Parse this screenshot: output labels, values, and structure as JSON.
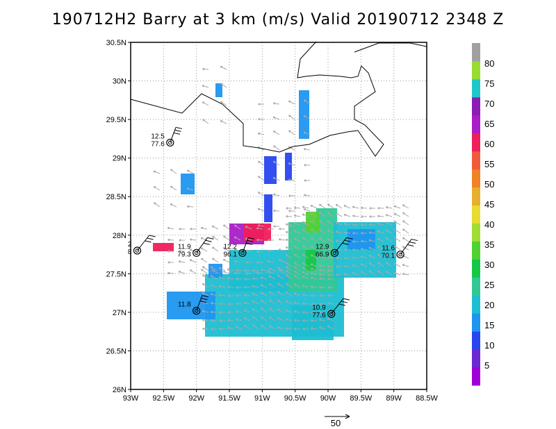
{
  "title": "190712H2 Barry at 3 km (m/s) Valid 20190712 2348 Z",
  "axes": {
    "lon_range": [
      -93,
      -88.5
    ],
    "lat_range": [
      26,
      30.5
    ],
    "x_ticks": [
      "93W",
      "92.5W",
      "92W",
      "91.5W",
      "91W",
      "90.5W",
      "90W",
      "89.5W",
      "89W",
      "88.5W"
    ],
    "y_ticks": [
      "30.5N",
      "30N",
      "29.5N",
      "29N",
      "28.5N",
      "28N",
      "27.5N",
      "27N",
      "26.5N",
      "26N"
    ],
    "grid": "dotted"
  },
  "colorbar": {
    "labels": [
      "5",
      "10",
      "15",
      "20",
      "25",
      "30",
      "35",
      "40",
      "45",
      "50",
      "55",
      "60",
      "65",
      "70",
      "75",
      "80"
    ],
    "colors": [
      "#a000d8",
      "#6e28d2",
      "#2846f0",
      "#1e96f0",
      "#1ebed2",
      "#32c896",
      "#14c846",
      "#50d232",
      "#a0dc32",
      "#e6dc32",
      "#e6af2d",
      "#f08228",
      "#f05a3c",
      "#f01e5a",
      "#aa1ec8",
      "#8c1eb4",
      "#1ec8c8",
      "#96dc32",
      "#a0a0a0"
    ]
  },
  "observations": [
    {
      "lon": -92.4,
      "lat": 29.2,
      "speed": "12.5",
      "dir": "77.6"
    },
    {
      "lon": -92.9,
      "lat": 27.8,
      "speed": "2",
      "dir": "8"
    },
    {
      "lon": -92.0,
      "lat": 27.77,
      "speed": "11.9",
      "dir": "79.3"
    },
    {
      "lon": -91.3,
      "lat": 27.77,
      "speed": "12.2",
      "dir": "96.1"
    },
    {
      "lon": -89.9,
      "lat": 27.77,
      "speed": "12.9",
      "dir": "66.9"
    },
    {
      "lon": -88.9,
      "lat": 27.75,
      "speed": "11.6",
      "dir": "70.1"
    },
    {
      "lon": -92.0,
      "lat": 27.02,
      "speed": "11.8",
      "dir": ""
    },
    {
      "lon": -89.95,
      "lat": 26.98,
      "speed": "10.9",
      "dir": "77.6"
    }
  ],
  "reference_vector": {
    "label": "50"
  },
  "colors": {
    "vector": "#a8a8a8",
    "coast": "#000000",
    "grid": "#9a9a9a"
  }
}
